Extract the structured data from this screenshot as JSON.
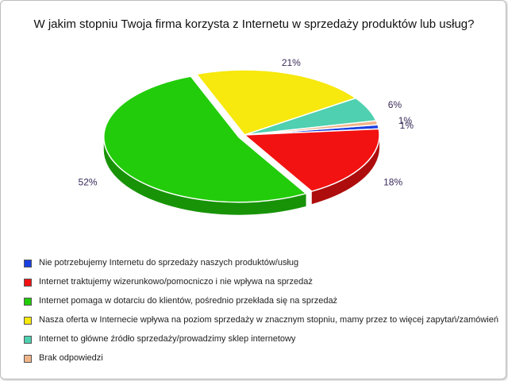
{
  "chart_data": {
    "type": "pie",
    "title": "W jakim stopniu Twoja firma korzysta z Internetu w sprzedaży produktów lub usług?",
    "legend_position": "bottom",
    "slices": [
      {
        "label": "Nie potrzebujemy Internetu do sprzedaży naszych produktów/usług",
        "value": 1,
        "value_label": "1%",
        "color": "#1a3fe0"
      },
      {
        "label": "Internet traktujemy wizerunkowo/pomocniczo i nie wpływa na sprzedaż",
        "value": 18,
        "value_label": "18%",
        "color": "#f21212"
      },
      {
        "label": "Internet pomaga w dotarciu do klientów, pośrednio przekłada się na sprzedaż",
        "value": 52,
        "value_label": "52%",
        "color": "#22cc0a"
      },
      {
        "label": "Nasza oferta w Internecie wpływa na poziom sprzedaży w znacznym stopniu, mamy przez to więcej zapytań/zamówień",
        "value": 21,
        "value_label": "21%",
        "color": "#f7e80d"
      },
      {
        "label": "Internet to główne źródło sprzedaży/prowadzimy sklep internetowy",
        "value": 6,
        "value_label": "6%",
        "color": "#4fd0b0"
      },
      {
        "label": "Brak odpowiedzi",
        "value": 1,
        "value_label": "1%",
        "color": "#f0b48a"
      }
    ]
  }
}
